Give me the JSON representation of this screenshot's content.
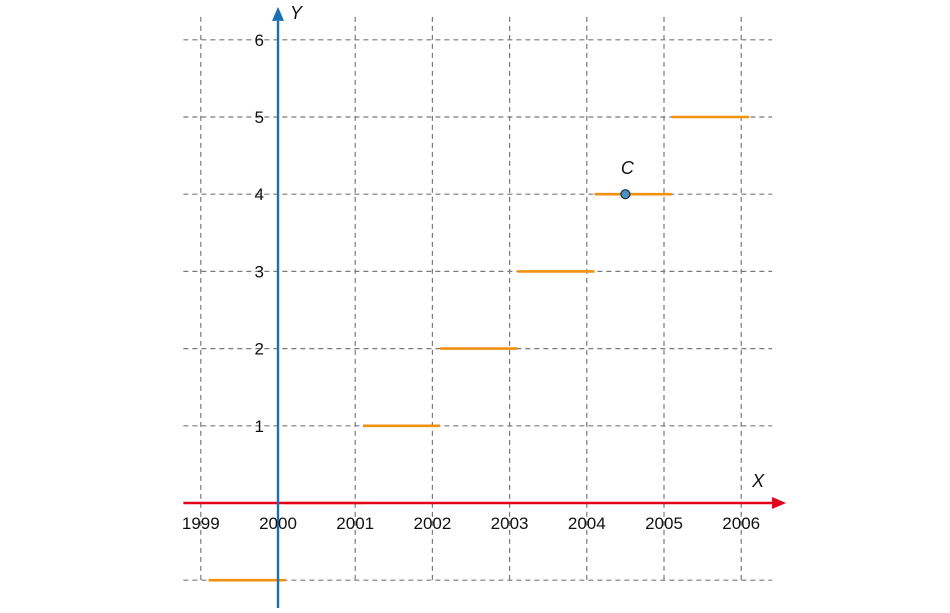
{
  "chart_data": {
    "type": "line",
    "x_axis_label": "X",
    "y_axis_label": "Y",
    "x_ticks": [
      "1999",
      "2000",
      "2001",
      "2002",
      "2003",
      "2004",
      "2005",
      "2006"
    ],
    "y_ticks": [
      "1",
      "2",
      "3",
      "4",
      "5",
      "6"
    ],
    "xlim": [
      1998.8,
      2006.4
    ],
    "ylim": [
      -1.05,
      6.4
    ],
    "grid": true,
    "segments": [
      {
        "x": [
          1999.1,
          2000.1
        ],
        "y": -1
      },
      {
        "x": [
          2000.1,
          2001.1
        ],
        "y": 0
      },
      {
        "x": [
          2001.1,
          2002.1
        ],
        "y": 1
      },
      {
        "x": [
          2002.1,
          2003.1
        ],
        "y": 2
      },
      {
        "x": [
          2003.1,
          2004.1
        ],
        "y": 3
      },
      {
        "x": [
          2004.1,
          2005.1
        ],
        "y": 4
      },
      {
        "x": [
          2005.1,
          2006.1
        ],
        "y": 5
      }
    ],
    "point": {
      "label": "C",
      "x": 2004.5,
      "y": 4
    },
    "colors": {
      "x_axis": "#e3001b",
      "y_axis": "#1a6fb5",
      "segment": "#f0920f",
      "grid": "#7a7a7a",
      "point_fill": "#4a90c8"
    }
  }
}
